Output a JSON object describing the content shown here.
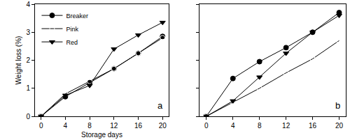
{
  "chart_data": [
    {
      "type": "line",
      "title": "a",
      "xlabel": "Storage days",
      "ylabel": "Weight loss (%)",
      "x": [
        0,
        4,
        8,
        12,
        16,
        20
      ],
      "xlim": [
        -1,
        21
      ],
      "xticks": [
        0,
        4,
        8,
        12,
        16,
        20
      ],
      "ylim": [
        0,
        4
      ],
      "yticks": [
        0,
        1,
        2,
        3,
        4
      ],
      "grid": false,
      "legend": "upper left",
      "series": [
        {
          "name": "Breaker",
          "color": "#000000",
          "marker": "circle",
          "values": [
            0,
            0.7,
            1.2,
            1.7,
            2.25,
            2.85
          ]
        },
        {
          "name": "Pink",
          "color": "#000000",
          "marker": "circle-open",
          "values": [
            0,
            0.8,
            1.25,
            1.7,
            2.25,
            2.8
          ]
        },
        {
          "name": "Red",
          "color": "#000000",
          "marker": "triangle-down",
          "values": [
            0,
            0.75,
            1.1,
            2.4,
            2.9,
            3.35
          ]
        }
      ]
    },
    {
      "type": "line",
      "title": "b",
      "x": [
        0,
        4,
        8,
        12,
        16,
        20
      ],
      "xlim": [
        -1,
        21
      ],
      "xticks": [
        0,
        4,
        8,
        12,
        16,
        20
      ],
      "ylim": [
        0,
        4
      ],
      "yticks": [
        0,
        1,
        2,
        3,
        4
      ],
      "grid": false,
      "tick_labels": "x",
      "series": [
        {
          "name": "Breaker",
          "color": "#000000",
          "marker": "circle",
          "values": [
            0,
            1.35,
            1.95,
            2.45,
            3.0,
            3.7
          ]
        },
        {
          "name": "Pink",
          "color": "#000000",
          "marker": "circle-open",
          "values": [
            0,
            0.5,
            1.0,
            1.55,
            2.05,
            2.7
          ]
        },
        {
          "name": "Red",
          "color": "#000000",
          "marker": "triangle-down",
          "values": [
            0,
            0.55,
            1.4,
            2.25,
            3.0,
            3.6
          ]
        }
      ]
    }
  ]
}
